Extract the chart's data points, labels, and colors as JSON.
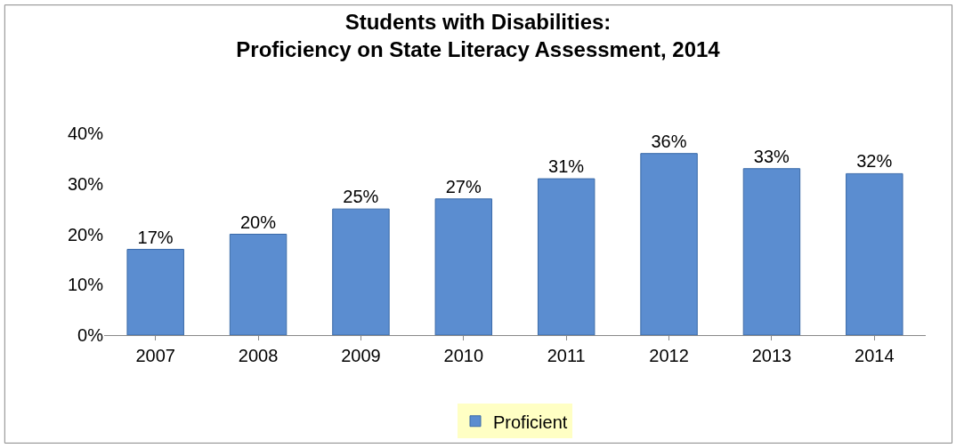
{
  "chart_data": {
    "type": "bar",
    "title": "Students with Disabilities:\nProficiency on State Literacy Assessment, 2014",
    "categories": [
      "2007",
      "2008",
      "2009",
      "2010",
      "2011",
      "2012",
      "2013",
      "2014"
    ],
    "series": [
      {
        "name": "Proficient",
        "color": "#5b8dd0",
        "values": [
          17,
          20,
          25,
          27,
          31,
          36,
          33,
          32
        ],
        "value_labels": [
          "17%",
          "20%",
          "25%",
          "27%",
          "31%",
          "36%",
          "33%",
          "32%"
        ]
      }
    ],
    "ylim": [
      0,
      40
    ],
    "yticks": [
      {
        "value": 0,
        "label": "0%"
      },
      {
        "value": 10,
        "label": "10%"
      },
      {
        "value": 20,
        "label": "20%"
      },
      {
        "value": 30,
        "label": "30%"
      },
      {
        "value": 40,
        "label": "40%"
      }
    ],
    "legend": "bottom"
  }
}
